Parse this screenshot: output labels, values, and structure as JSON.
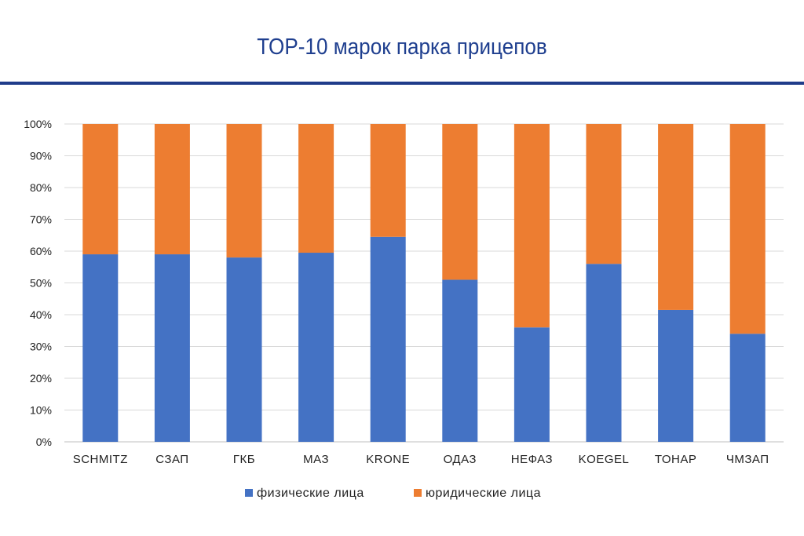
{
  "chart_data": {
    "type": "bar",
    "stacked": true,
    "title": "ТОР-10 марок парка прицепов",
    "categories": [
      "SCHMITZ",
      "СЗАП",
      "ГКБ",
      "МАЗ",
      "KRONE",
      "ОДАЗ",
      "НЕФАЗ",
      "KOEGEL",
      "ТОНАР",
      "ЧМЗАП"
    ],
    "series": [
      {
        "name": "физические лица",
        "color": "#4472c4",
        "values": [
          59,
          59,
          58,
          59.5,
          64.5,
          51,
          36,
          56,
          41.5,
          34
        ]
      },
      {
        "name": "юридические лица",
        "color": "#ed7d31",
        "values": [
          41,
          41,
          42,
          40.5,
          35.5,
          49,
          64,
          44,
          58.5,
          66
        ]
      }
    ],
    "ylim": [
      0,
      100
    ],
    "yticks": [
      "0%",
      "10%",
      "20%",
      "30%",
      "40%",
      "50%",
      "60%",
      "70%",
      "80%",
      "90%",
      "100%"
    ],
    "grid": true,
    "legend_position": "bottom"
  }
}
